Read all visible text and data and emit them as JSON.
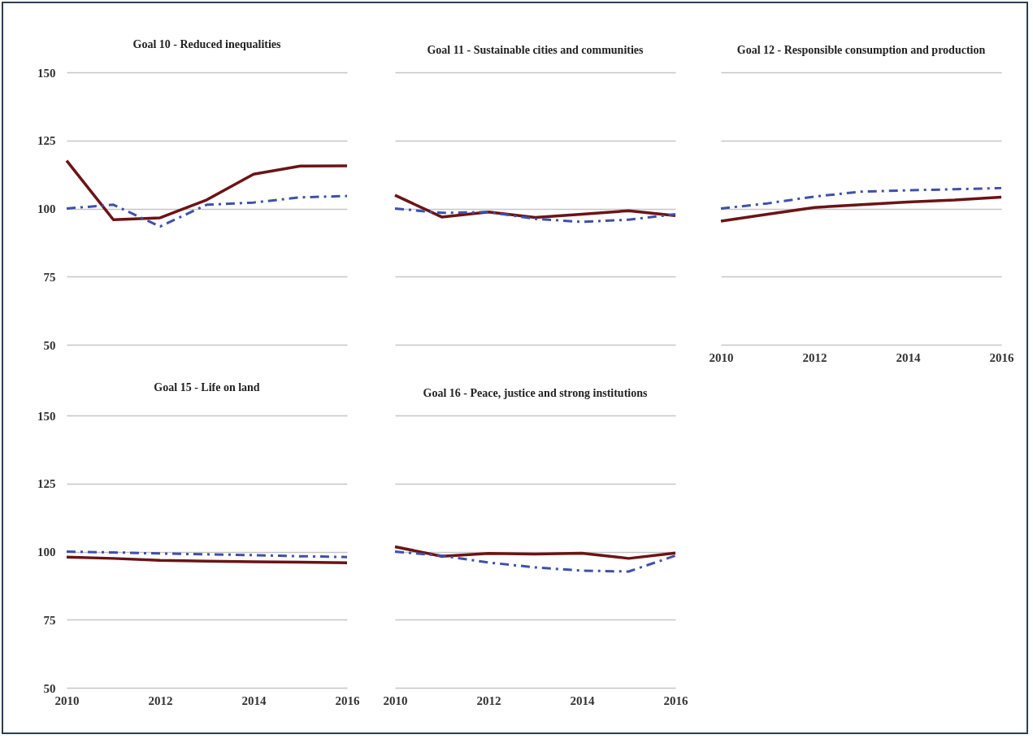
{
  "chart_data": [
    {
      "type": "line",
      "title": "Goal 10 - Reduced inequalities",
      "x": [
        2010,
        2011,
        2012,
        2013,
        2014,
        2015,
        2016
      ],
      "xlim": [
        2010,
        2016
      ],
      "xticks": [
        2010,
        2012,
        2014,
        2016
      ],
      "ylim": [
        50,
        150
      ],
      "yticks": [
        50,
        75,
        100,
        125,
        150
      ],
      "grid": "y",
      "tick_labels": "y",
      "series": [
        {
          "color": "#6b1416",
          "line_style": "solid",
          "values": [
            117.6,
            95.9,
            96.6,
            103.2,
            112.6,
            115.6,
            115.7
          ]
        },
        {
          "color": "#3f51a8",
          "line_style": "dashed",
          "values": [
            100,
            101.4,
            93.4,
            101.4,
            102.2,
            104.1,
            104.6
          ]
        }
      ]
    },
    {
      "type": "line",
      "title": "Goal 11 - Sustainable cities and communities",
      "x": [
        2010,
        2011,
        2012,
        2013,
        2014,
        2015,
        2016
      ],
      "xlim": [
        2010,
        2016
      ],
      "xticks": [
        2010,
        2012,
        2014,
        2016
      ],
      "ylim": [
        50,
        150
      ],
      "yticks": [
        50,
        75,
        100,
        125,
        150
      ],
      "grid": "y",
      "tick_labels": false,
      "series": [
        {
          "color": "#6b1416",
          "line_style": "solid",
          "values": [
            104.9,
            96.9,
            98.7,
            96.7,
            97.9,
            99.2,
            97.4
          ]
        },
        {
          "color": "#3f51a8",
          "line_style": "dashed",
          "values": [
            100,
            98.4,
            98.7,
            96.2,
            95.1,
            95.9,
            97.9
          ]
        }
      ]
    },
    {
      "type": "line",
      "title": "Goal 12 - Responsible consumption and production",
      "x": [
        2010,
        2011,
        2012,
        2013,
        2014,
        2015,
        2016
      ],
      "xlim": [
        2010,
        2016
      ],
      "xticks": [
        2010,
        2012,
        2014,
        2016
      ],
      "ylim": [
        50,
        150
      ],
      "yticks": [
        50,
        75,
        100,
        125,
        150
      ],
      "grid": "y",
      "tick_labels": "x",
      "series": [
        {
          "color": "#6b1416",
          "line_style": "solid",
          "values": [
            95.4,
            97.9,
            100.4,
            101.4,
            102.4,
            103.1,
            104.2
          ]
        },
        {
          "color": "#3f51a8",
          "line_style": "dashed",
          "values": [
            100,
            101.9,
            104.4,
            106.2,
            106.7,
            107.1,
            107.5
          ]
        }
      ]
    },
    {
      "type": "line",
      "title": "Goal 15 - Life on land",
      "x": [
        2010,
        2011,
        2012,
        2013,
        2014,
        2015,
        2016
      ],
      "xlim": [
        2010,
        2016
      ],
      "xticks": [
        2010,
        2012,
        2014,
        2016
      ],
      "ylim": [
        50,
        150
      ],
      "yticks": [
        50,
        75,
        100,
        125,
        150
      ],
      "grid": "y",
      "series": [
        {
          "color": "#6b1416",
          "line_style": "solid",
          "values": [
            98.0,
            97.5,
            96.8,
            96.5,
            96.3,
            96.1,
            95.9
          ]
        },
        {
          "color": "#3f51a8",
          "line_style": "dashed",
          "values": [
            100,
            99.7,
            99.3,
            99.0,
            98.7,
            98.3,
            98.0
          ]
        }
      ]
    },
    {
      "type": "line",
      "title": "Goal 16 - Peace, justice and strong institutions",
      "x": [
        2010,
        2011,
        2012,
        2013,
        2014,
        2015,
        2016
      ],
      "xlim": [
        2010,
        2016
      ],
      "xticks": [
        2010,
        2012,
        2014,
        2016
      ],
      "ylim": [
        50,
        150
      ],
      "yticks": [
        50,
        75,
        100,
        125,
        150
      ],
      "grid": "y",
      "tick_labels": "x",
      "series": [
        {
          "color": "#6b1416",
          "line_style": "solid",
          "values": [
            101.8,
            98.3,
            99.3,
            99.1,
            99.4,
            97.5,
            99.5
          ]
        },
        {
          "color": "#3f51a8",
          "line_style": "dashed",
          "values": [
            100,
            98.5,
            96.0,
            94.2,
            93.0,
            92.7,
            98.5
          ]
        }
      ]
    }
  ]
}
